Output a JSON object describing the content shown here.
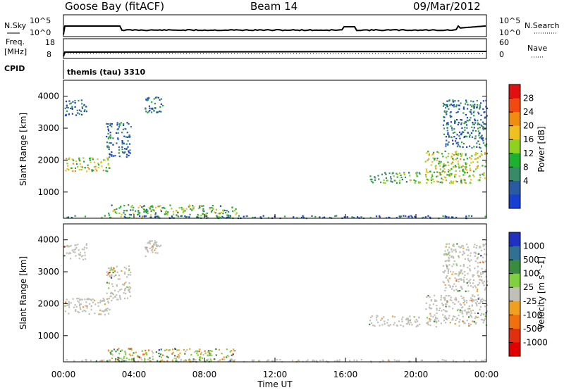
{
  "header": {
    "radar": "Goose Bay (fitACF)",
    "beam": "Beam 14",
    "date": "09/Mar/2012"
  },
  "strips": {
    "nsky_label": "N.Sky",
    "nsearch_label": "N.Search",
    "noise_ticks_left": [
      "10^5",
      "10^0"
    ],
    "noise_ticks_right": [
      "10^5",
      "10^0"
    ],
    "freq_label_line1": "Freq.",
    "freq_label_line2": "[MHz]",
    "freq_ticks": [
      "18",
      "8"
    ],
    "nave_label": "Nave",
    "nave_ticks": [
      "60",
      "0"
    ],
    "cpid_label": "CPID",
    "cpid_value": "themis (tau) 3310"
  },
  "legend_power": {
    "title": "Power [dB]",
    "ticks": [
      "28",
      "24",
      "20",
      "16",
      "12",
      "8",
      "4"
    ],
    "colors": [
      "#e01010",
      "#f04a10",
      "#f08c10",
      "#f0c020",
      "#8fd020",
      "#20b030",
      "#3a8a6a",
      "#2a5aa0",
      "#1840d0"
    ]
  },
  "legend_velocity": {
    "title": "Velocity [m s^-1]",
    "ticks": [
      "1000",
      "500",
      "100",
      "25",
      "-25",
      "-100",
      "-500",
      "-1000"
    ],
    "colors": [
      "#2030c0",
      "#307090",
      "#3a8a40",
      "#80d040",
      "#c0c0b8",
      "#f0a020",
      "#f07010",
      "#e03010",
      "#e00000"
    ]
  },
  "x_axis": {
    "label": "Time UT",
    "ticks": [
      "00:00",
      "04:00",
      "08:00",
      "12:00",
      "16:00",
      "20:00",
      "00:00"
    ]
  },
  "chart_data": [
    {
      "type": "heatmap",
      "title": "Power [dB]",
      "xlabel": "Time UT",
      "ylabel": "Slant Range [km]",
      "xlim": [
        0,
        24
      ],
      "ylim": [
        180,
        4500
      ],
      "yticks": [
        1000,
        2000,
        3000,
        4000
      ],
      "zlim": [
        0,
        32
      ],
      "regions": [
        {
          "t": [
            0.05,
            2.6
          ],
          "r": [
            1650,
            2100
          ],
          "z": 17
        },
        {
          "t": [
            0.0,
            1.3
          ],
          "r": [
            3400,
            3900
          ],
          "z": 7
        },
        {
          "t": [
            2.4,
            3.8
          ],
          "r": [
            2100,
            3200
          ],
          "z": 5
        },
        {
          "t": [
            4.6,
            5.6
          ],
          "r": [
            3500,
            4000
          ],
          "z": 6
        },
        {
          "t": [
            2.5,
            9.8
          ],
          "r": [
            200,
            620
          ],
          "z": 13
        },
        {
          "t": [
            17.3,
            20.2
          ],
          "r": [
            1300,
            1650
          ],
          "z": 11
        },
        {
          "t": [
            20.5,
            24
          ],
          "r": [
            1300,
            2300
          ],
          "z": 16
        },
        {
          "t": [
            21.5,
            24
          ],
          "r": [
            2400,
            3900
          ],
          "z": 6
        },
        {
          "t": [
            0,
            24
          ],
          "r": [
            200,
            280
          ],
          "z": 6
        }
      ]
    },
    {
      "type": "heatmap",
      "title": "Velocity [m s^-1]",
      "xlabel": "Time UT",
      "ylabel": "Slant Range [km]",
      "xlim": [
        0,
        24
      ],
      "ylim": [
        180,
        4500
      ],
      "yticks": [
        1000,
        2000,
        3000,
        4000
      ],
      "zlim": [
        -1000,
        1000
      ],
      "regions": [
        {
          "t": [
            0.05,
            2.6
          ],
          "r": [
            1650,
            2200
          ],
          "z": 0
        },
        {
          "t": [
            0.0,
            1.3
          ],
          "r": [
            3400,
            3900
          ],
          "z": 0
        },
        {
          "t": [
            2.4,
            3.8
          ],
          "r": [
            2100,
            3200
          ],
          "z": 0
        },
        {
          "t": [
            4.6,
            5.6
          ],
          "r": [
            3500,
            4000
          ],
          "z": 0
        },
        {
          "t": [
            2.5,
            9.8
          ],
          "r": [
            200,
            620
          ],
          "z": 30
        },
        {
          "t": [
            17.3,
            20.2
          ],
          "r": [
            1300,
            1650
          ],
          "z": 0
        },
        {
          "t": [
            20.5,
            24
          ],
          "r": [
            1300,
            2300
          ],
          "z": 0
        },
        {
          "t": [
            21.5,
            24
          ],
          "r": [
            2400,
            3900
          ],
          "z": 0
        },
        {
          "t": [
            0,
            24
          ],
          "r": [
            200,
            280
          ],
          "z": 0
        }
      ]
    }
  ]
}
